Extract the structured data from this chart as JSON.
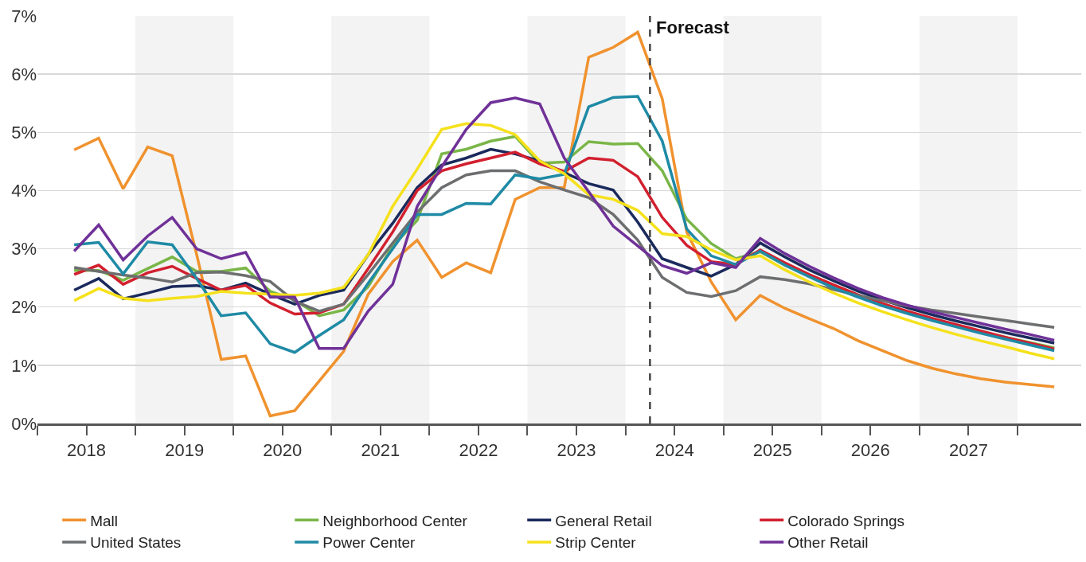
{
  "chart_data": {
    "type": "line",
    "x": [
      2018.375,
      2018.625,
      2018.875,
      2019.125,
      2019.375,
      2019.625,
      2019.875,
      2020.125,
      2020.375,
      2020.625,
      2020.875,
      2021.125,
      2021.375,
      2021.625,
      2021.875,
      2022.125,
      2022.375,
      2022.625,
      2022.875,
      2023.125,
      2023.375,
      2023.625,
      2023.875,
      2024.125,
      2024.375,
      2024.625,
      2024.875,
      2025.125,
      2025.375,
      2025.625,
      2025.875,
      2026.125,
      2026.375,
      2026.625,
      2026.875,
      2027.125,
      2027.375,
      2027.625,
      2027.875,
      2028.125,
      2028.375
    ],
    "series": [
      {
        "name": "Mall",
        "color": "#f0922e",
        "values": [
          4.7,
          4.9,
          4.03,
          4.75,
          4.6,
          2.9,
          1.1,
          1.16,
          0.13,
          0.22,
          0.73,
          1.24,
          2.22,
          2.78,
          3.15,
          2.51,
          2.76,
          2.59,
          3.85,
          4.05,
          4.05,
          6.29,
          6.46,
          6.72,
          5.58,
          3.29,
          2.43,
          1.78,
          2.2,
          1.98,
          1.8,
          1.63,
          1.42,
          1.25,
          1.08,
          0.95,
          0.85,
          0.77,
          0.71,
          0.67,
          0.63
        ]
      },
      {
        "name": "Neighborhood Center",
        "color": "#7ab648",
        "values": [
          2.63,
          2.63,
          2.46,
          2.66,
          2.86,
          2.61,
          2.61,
          2.67,
          2.27,
          2.12,
          1.85,
          1.95,
          2.35,
          3.05,
          3.49,
          4.63,
          4.71,
          4.85,
          4.93,
          4.47,
          4.49,
          4.84,
          4.8,
          4.81,
          4.34,
          3.51,
          3.09,
          2.83,
          2.95,
          2.72,
          2.53,
          2.35,
          2.19,
          2.04,
          1.91,
          1.79,
          1.68,
          1.58,
          1.48,
          1.39,
          1.3
        ]
      },
      {
        "name": "General Retail",
        "color": "#1b2a5c",
        "values": [
          2.29,
          2.49,
          2.14,
          2.24,
          2.35,
          2.37,
          2.29,
          2.41,
          2.22,
          2.05,
          2.2,
          2.29,
          2.9,
          3.44,
          4.05,
          4.44,
          4.56,
          4.71,
          4.63,
          4.51,
          4.31,
          4.12,
          4.01,
          3.46,
          2.83,
          2.68,
          2.53,
          2.73,
          3.1,
          2.86,
          2.64,
          2.45,
          2.27,
          2.12,
          1.99,
          1.87,
          1.76,
          1.66,
          1.56,
          1.47,
          1.38
        ]
      },
      {
        "name": "Colorado Springs",
        "color": "#d2202f",
        "values": [
          2.56,
          2.72,
          2.39,
          2.59,
          2.7,
          2.49,
          2.29,
          2.37,
          2.07,
          1.88,
          1.9,
          2.05,
          2.66,
          3.29,
          4.0,
          4.34,
          4.46,
          4.56,
          4.66,
          4.46,
          4.33,
          4.56,
          4.52,
          4.24,
          3.54,
          3.06,
          2.78,
          2.73,
          2.98,
          2.76,
          2.56,
          2.38,
          2.21,
          2.06,
          1.93,
          1.81,
          1.7,
          1.59,
          1.48,
          1.38,
          1.28
        ]
      },
      {
        "name": "United States",
        "color": "#6d6e70",
        "values": [
          2.68,
          2.61,
          2.55,
          2.5,
          2.43,
          2.59,
          2.6,
          2.54,
          2.44,
          2.1,
          1.93,
          2.05,
          2.56,
          3.1,
          3.63,
          4.05,
          4.27,
          4.34,
          4.34,
          4.15,
          4.01,
          3.88,
          3.59,
          3.15,
          2.51,
          2.25,
          2.18,
          2.28,
          2.52,
          2.47,
          2.4,
          2.3,
          2.2,
          2.11,
          2.02,
          1.95,
          1.89,
          1.83,
          1.77,
          1.71,
          1.65
        ]
      },
      {
        "name": "Power Center",
        "color": "#1f8aa5",
        "values": [
          3.07,
          3.11,
          2.57,
          3.12,
          3.07,
          2.49,
          1.85,
          1.9,
          1.37,
          1.22,
          1.51,
          1.78,
          2.41,
          3.0,
          3.59,
          3.59,
          3.78,
          3.77,
          4.27,
          4.2,
          4.28,
          5.44,
          5.6,
          5.62,
          4.85,
          3.34,
          2.88,
          2.73,
          2.96,
          2.72,
          2.52,
          2.33,
          2.17,
          2.02,
          1.89,
          1.77,
          1.66,
          1.55,
          1.45,
          1.35,
          1.25
        ]
      },
      {
        "name": "Strip Center",
        "color": "#f5e11b",
        "values": [
          2.11,
          2.32,
          2.15,
          2.11,
          2.15,
          2.18,
          2.27,
          2.24,
          2.22,
          2.2,
          2.24,
          2.34,
          2.9,
          3.73,
          4.37,
          5.05,
          5.15,
          5.12,
          4.96,
          4.51,
          4.29,
          3.93,
          3.85,
          3.66,
          3.26,
          3.21,
          2.98,
          2.81,
          2.88,
          2.64,
          2.43,
          2.24,
          2.07,
          1.92,
          1.78,
          1.65,
          1.53,
          1.42,
          1.32,
          1.21,
          1.11
        ]
      },
      {
        "name": "Other Retail",
        "color": "#6f3198",
        "values": [
          2.96,
          3.41,
          2.81,
          3.22,
          3.54,
          3.0,
          2.83,
          2.94,
          2.17,
          2.17,
          1.29,
          1.29,
          1.93,
          2.39,
          3.73,
          4.41,
          5.05,
          5.51,
          5.59,
          5.49,
          4.56,
          3.98,
          3.39,
          3.05,
          2.71,
          2.58,
          2.76,
          2.68,
          3.18,
          2.92,
          2.7,
          2.5,
          2.32,
          2.16,
          2.03,
          1.92,
          1.82,
          1.72,
          1.62,
          1.53,
          1.43
        ]
      }
    ],
    "xlim": [
      2018,
      2028.65
    ],
    "xticks": [
      {
        "value": 2018,
        "label": null
      },
      {
        "value": 2018.5,
        "label": "2018"
      },
      {
        "value": 2019,
        "label": null
      },
      {
        "value": 2019.5,
        "label": "2019"
      },
      {
        "value": 2020,
        "label": null
      },
      {
        "value": 2020.5,
        "label": "2020"
      },
      {
        "value": 2021,
        "label": null
      },
      {
        "value": 2021.5,
        "label": "2021"
      },
      {
        "value": 2022,
        "label": null
      },
      {
        "value": 2022.5,
        "label": "2022"
      },
      {
        "value": 2023,
        "label": null
      },
      {
        "value": 2023.5,
        "label": "2023"
      },
      {
        "value": 2024,
        "label": null
      },
      {
        "value": 2024.5,
        "label": "2024"
      },
      {
        "value": 2025,
        "label": null
      },
      {
        "value": 2025.5,
        "label": "2025"
      },
      {
        "value": 2026,
        "label": null
      },
      {
        "value": 2026.5,
        "label": "2026"
      },
      {
        "value": 2027,
        "label": null
      },
      {
        "value": 2027.5,
        "label": "2027"
      },
      {
        "value": 2028,
        "label": null
      }
    ],
    "ylim": [
      0,
      7
    ],
    "yticks": [
      {
        "value": 0,
        "label": "0%"
      },
      {
        "value": 1,
        "label": "1%"
      },
      {
        "value": 2,
        "label": "2%"
      },
      {
        "value": 3,
        "label": "3%"
      },
      {
        "value": 4,
        "label": "4%"
      },
      {
        "value": 5,
        "label": "5%"
      },
      {
        "value": 6,
        "label": "6%"
      },
      {
        "value": 7,
        "label": "7%"
      }
    ],
    "grid": "y",
    "legend": "bottom",
    "marker": "none",
    "line_style": "solid",
    "ref_lines": [
      {
        "axis": "x",
        "value": 2024.25,
        "label": "Forecast",
        "color": "#444444",
        "line_style": "dashed"
      }
    ],
    "bands": [
      {
        "axis": "x",
        "from": 2019,
        "to": 2020,
        "label": null,
        "color": "#f3f3f3"
      },
      {
        "axis": "x",
        "from": 2021,
        "to": 2022,
        "label": null,
        "color": "#f3f3f3"
      },
      {
        "axis": "x",
        "from": 2023,
        "to": 2024,
        "label": null,
        "color": "#f3f3f3"
      },
      {
        "axis": "x",
        "from": 2025,
        "to": 2026,
        "label": null,
        "color": "#f3f3f3"
      },
      {
        "axis": "x",
        "from": 2027,
        "to": 2028,
        "label": null,
        "color": "#f3f3f3"
      }
    ]
  }
}
